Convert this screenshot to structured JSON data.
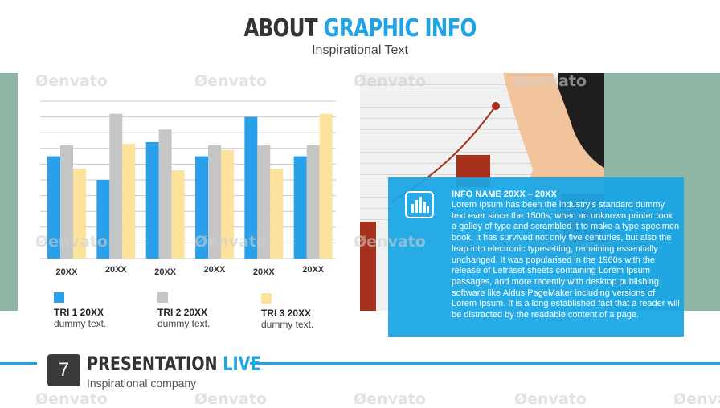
{
  "header": {
    "title_part1": "ABOUT",
    "title_part2": "GRAPHIC INFO",
    "subtitle": "Inspirational Text"
  },
  "chart_data": {
    "type": "bar",
    "categories": [
      "20XX",
      "20XX",
      "20XX",
      "20XX",
      "20XX",
      "20XX"
    ],
    "series": [
      {
        "name": "TRI 1 20XX",
        "values": [
          65,
          50,
          74,
          65,
          90,
          65
        ],
        "color": "#2aa0ea"
      },
      {
        "name": "TRI 2 20XX",
        "values": [
          72,
          92,
          82,
          72,
          72,
          72
        ],
        "color": "#c6c6c6"
      },
      {
        "name": "TRI 3 20XX",
        "values": [
          57,
          73,
          56,
          69,
          57,
          92
        ],
        "color": "#fce29a"
      }
    ],
    "ylim": [
      0,
      100
    ],
    "grid": true,
    "legend": "bottom"
  },
  "legend": [
    {
      "name": "TRI 1 20XX",
      "desc": "dummy text.",
      "color": "#2aa0ea"
    },
    {
      "name": "TRI 2  20XX",
      "desc": "dummy text.",
      "color": "#c6c6c6"
    },
    {
      "name": "TRI 3 20XX",
      "desc": "dummy text.",
      "color": "#fce29a"
    }
  ],
  "info": {
    "title": "INFO NAME 20XX – 20XX",
    "body": "Lorem Ipsum has been the industry's standard dummy text ever since the 1500s, when an unknown printer took a galley of type and scrambled it to make a type specimen book. It has survived not only five centuries, but also the leap into electronic typesetting, remaining essentially unchanged. It was popularised in the 1960s with the release of Letraset sheets containing Lorem Ipsum passages, and more recently with desktop publishing software like Aldus PageMaker including versions of Lorem Ipsum. It is a long established fact that a reader will be distracted by the readable content of a page.",
    "icon": "equalizer-icon"
  },
  "footer": {
    "page_number": "7",
    "title_part1": "PRESENTATION",
    "title_part2": "LIVE",
    "subtitle": "Inspirational company"
  },
  "watermark": "envato",
  "colors": {
    "accent": "#1fa3e4",
    "dark": "#333333",
    "band": "#8fb6a4"
  }
}
